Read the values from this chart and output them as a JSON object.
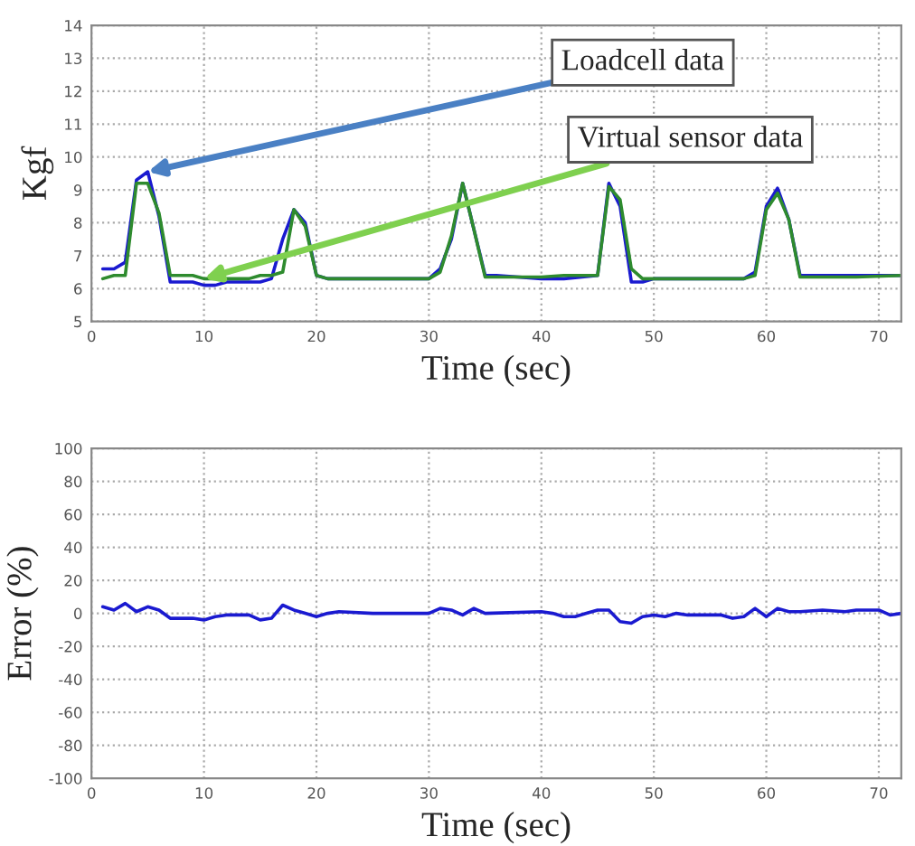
{
  "chart_data": [
    {
      "type": "line",
      "xlabel": "Time (sec)",
      "ylabel": "Kgf",
      "xlim": [
        0,
        72
      ],
      "ylim": [
        5,
        14
      ],
      "xticks": [
        0,
        10,
        20,
        30,
        40,
        50,
        60,
        70
      ],
      "yticks": [
        5,
        6,
        7,
        8,
        9,
        10,
        11,
        12,
        13,
        14
      ],
      "grid": true,
      "annotations": [
        {
          "text": "Loadcell data",
          "x": 5,
          "y": 9.55
        },
        {
          "text": "Virtual sensor data",
          "x": 10,
          "y": 6.3
        }
      ],
      "series": [
        {
          "color": "#1a1ad0",
          "x": [
            1,
            2,
            3,
            4,
            5,
            6,
            7,
            8,
            9,
            10,
            11,
            12,
            13,
            14,
            15,
            16,
            17,
            18,
            19,
            20,
            21,
            25,
            30,
            31,
            32,
            33,
            34,
            35,
            36,
            40,
            42,
            45,
            46,
            47,
            48,
            49,
            50,
            55,
            58,
            59,
            60,
            61,
            62,
            63,
            64,
            68,
            72
          ],
          "values": [
            6.6,
            6.6,
            6.8,
            9.3,
            9.55,
            8.2,
            6.2,
            6.2,
            6.2,
            6.1,
            6.1,
            6.2,
            6.2,
            6.2,
            6.2,
            6.3,
            7.5,
            8.4,
            8.0,
            6.4,
            6.3,
            6.3,
            6.3,
            6.6,
            7.5,
            9.2,
            7.8,
            6.4,
            6.4,
            6.3,
            6.3,
            6.4,
            9.2,
            8.5,
            6.2,
            6.2,
            6.3,
            6.3,
            6.3,
            6.5,
            8.5,
            9.05,
            8.1,
            6.4,
            6.4,
            6.4,
            6.4
          ]
        },
        {
          "color": "#2e8b2e",
          "x": [
            1,
            2,
            3,
            4,
            5,
            6,
            7,
            8,
            9,
            10,
            11,
            12,
            13,
            14,
            15,
            16,
            17,
            18,
            19,
            20,
            21,
            25,
            30,
            31,
            32,
            33,
            34,
            35,
            36,
            40,
            42,
            45,
            46,
            47,
            48,
            49,
            50,
            55,
            58,
            59,
            60,
            61,
            62,
            63,
            64,
            68,
            72
          ],
          "values": [
            6.3,
            6.4,
            6.4,
            9.2,
            9.2,
            8.3,
            6.4,
            6.4,
            6.4,
            6.3,
            6.3,
            6.3,
            6.3,
            6.3,
            6.4,
            6.4,
            6.5,
            8.4,
            7.9,
            6.4,
            6.3,
            6.3,
            6.3,
            6.5,
            7.6,
            9.2,
            7.8,
            6.35,
            6.35,
            6.35,
            6.4,
            6.4,
            9.1,
            8.7,
            6.6,
            6.3,
            6.3,
            6.3,
            6.3,
            6.4,
            8.4,
            8.9,
            8.1,
            6.35,
            6.35,
            6.35,
            6.4
          ]
        }
      ]
    },
    {
      "type": "line",
      "xlabel": "Time (sec)",
      "ylabel": "Error (%)",
      "xlim": [
        0,
        72
      ],
      "ylim": [
        -100,
        100
      ],
      "xticks": [
        0,
        10,
        20,
        30,
        40,
        50,
        60,
        70
      ],
      "yticks": [
        -100,
        -80,
        -60,
        -40,
        -20,
        0,
        20,
        40,
        60,
        80,
        100
      ],
      "grid": true,
      "series": [
        {
          "color": "#1a1ad0",
          "x": [
            1,
            2,
            3,
            4,
            5,
            6,
            7,
            8,
            9,
            10,
            11,
            12,
            13,
            14,
            15,
            16,
            17,
            18,
            19,
            20,
            21,
            22,
            25,
            30,
            31,
            32,
            33,
            34,
            35,
            40,
            41,
            42,
            43,
            44,
            45,
            46,
            47,
            48,
            49,
            50,
            51,
            52,
            53,
            56,
            57,
            58,
            59,
            60,
            61,
            62,
            63,
            65,
            67,
            68,
            70,
            71,
            72
          ],
          "values": [
            4,
            2,
            6,
            1,
            4,
            2,
            -3,
            -3,
            -3,
            -4,
            -2,
            -1,
            -1,
            -1,
            -4,
            -3,
            5,
            2,
            0,
            -2,
            0,
            1,
            0,
            0,
            3,
            2,
            -1,
            3,
            0,
            1,
            0,
            -2,
            -2,
            0,
            2,
            2,
            -5,
            -6,
            -2,
            -1,
            -2,
            0,
            -1,
            -1,
            -3,
            -2,
            3,
            -2,
            3,
            1,
            1,
            2,
            1,
            2,
            2,
            -1,
            0
          ]
        }
      ]
    }
  ]
}
